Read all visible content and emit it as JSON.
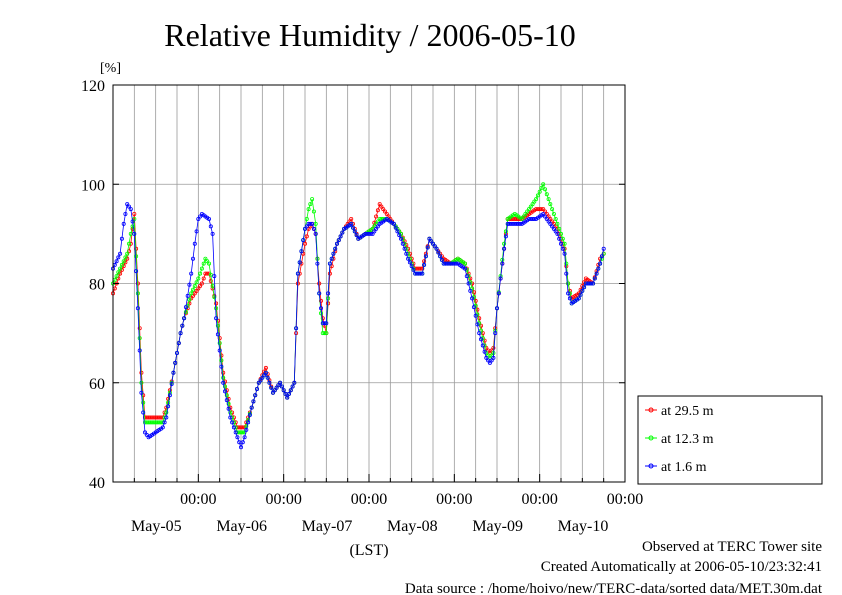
{
  "chart_data": {
    "type": "line",
    "title": "Relative Humidity / 2006-05-10",
    "ylabel": "[%]",
    "xlabel": "(LST)",
    "ylim": [
      40,
      120
    ],
    "yticks": [
      40,
      60,
      80,
      100,
      120
    ],
    "x_range_hours": [
      0,
      144
    ],
    "x_tick_labels": [
      {
        "time": "00:00",
        "date": "May-05"
      },
      {
        "time": "00:00",
        "date": "May-06"
      },
      {
        "time": "00:00",
        "date": "May-07"
      },
      {
        "time": "00:00",
        "date": "May-08"
      },
      {
        "time": "00:00",
        "date": "May-09"
      },
      {
        "time": "00:00",
        "date": "May-10"
      }
    ],
    "grid": true,
    "legend_position": "right",
    "series": [
      {
        "name": "at 29.5 m",
        "color": "#ff0000",
        "points": [
          [
            0,
            78
          ],
          [
            2,
            82
          ],
          [
            4,
            85
          ],
          [
            5,
            88
          ],
          [
            6,
            94
          ],
          [
            7,
            80
          ],
          [
            8,
            62
          ],
          [
            9,
            53
          ],
          [
            10,
            53
          ],
          [
            12,
            53
          ],
          [
            14,
            53
          ],
          [
            15,
            55
          ],
          [
            17,
            62
          ],
          [
            19,
            70
          ],
          [
            20,
            73
          ],
          [
            22,
            77
          ],
          [
            24,
            79
          ],
          [
            25,
            80
          ],
          [
            26,
            82
          ],
          [
            27,
            82
          ],
          [
            29,
            76
          ],
          [
            31,
            62
          ],
          [
            33,
            55
          ],
          [
            35,
            51
          ],
          [
            37,
            51
          ],
          [
            39,
            55
          ],
          [
            41,
            60
          ],
          [
            43,
            63
          ],
          [
            45,
            58
          ],
          [
            47,
            60
          ],
          [
            49,
            57
          ],
          [
            51,
            60
          ],
          [
            52,
            80
          ],
          [
            54,
            88
          ],
          [
            55,
            91
          ],
          [
            56,
            92
          ],
          [
            57,
            90
          ],
          [
            58,
            80
          ],
          [
            59,
            73
          ],
          [
            60,
            70
          ],
          [
            61,
            82
          ],
          [
            63,
            88
          ],
          [
            65,
            91
          ],
          [
            67,
            93
          ],
          [
            69,
            89
          ],
          [
            71,
            90
          ],
          [
            73,
            91
          ],
          [
            75,
            96
          ],
          [
            77,
            94
          ],
          [
            79,
            92
          ],
          [
            81,
            90
          ],
          [
            83,
            87
          ],
          [
            85,
            83
          ],
          [
            87,
            83
          ],
          [
            89,
            89
          ],
          [
            91,
            87
          ],
          [
            93,
            85
          ],
          [
            95,
            84
          ],
          [
            97,
            85
          ],
          [
            99,
            84
          ],
          [
            101,
            80
          ],
          [
            103,
            73
          ],
          [
            105,
            67
          ],
          [
            106,
            66
          ],
          [
            107,
            67
          ],
          [
            108,
            75
          ],
          [
            110,
            87
          ],
          [
            111,
            93
          ],
          [
            113,
            93
          ],
          [
            115,
            93
          ],
          [
            117,
            94
          ],
          [
            119,
            95
          ],
          [
            121,
            95
          ],
          [
            123,
            93
          ],
          [
            125,
            91
          ],
          [
            127,
            87
          ],
          [
            128,
            80
          ],
          [
            129,
            77
          ],
          [
            131,
            78
          ],
          [
            133,
            81
          ],
          [
            135,
            80
          ],
          [
            137,
            85
          ],
          [
            138,
            86
          ]
        ]
      },
      {
        "name": "at 12.3 m",
        "color": "#00ff00",
        "points": [
          [
            0,
            80
          ],
          [
            2,
            83
          ],
          [
            4,
            86
          ],
          [
            5,
            90
          ],
          [
            6,
            93
          ],
          [
            7,
            78
          ],
          [
            8,
            60
          ],
          [
            9,
            52
          ],
          [
            10,
            52
          ],
          [
            12,
            52
          ],
          [
            14,
            52
          ],
          [
            15,
            54
          ],
          [
            17,
            62
          ],
          [
            19,
            70
          ],
          [
            20,
            73
          ],
          [
            22,
            78
          ],
          [
            24,
            81
          ],
          [
            25,
            83
          ],
          [
            26,
            85
          ],
          [
            27,
            84
          ],
          [
            29,
            75
          ],
          [
            31,
            61
          ],
          [
            33,
            54
          ],
          [
            35,
            50
          ],
          [
            37,
            50
          ],
          [
            39,
            55
          ],
          [
            41,
            60
          ],
          [
            43,
            62
          ],
          [
            45,
            58
          ],
          [
            47,
            60
          ],
          [
            49,
            57
          ],
          [
            51,
            60
          ],
          [
            52,
            82
          ],
          [
            54,
            91
          ],
          [
            55,
            95
          ],
          [
            56,
            97
          ],
          [
            57,
            92
          ],
          [
            58,
            78
          ],
          [
            59,
            70
          ],
          [
            60,
            70
          ],
          [
            61,
            84
          ],
          [
            63,
            88
          ],
          [
            65,
            91
          ],
          [
            67,
            92
          ],
          [
            69,
            89
          ],
          [
            71,
            90
          ],
          [
            73,
            91
          ],
          [
            75,
            93
          ],
          [
            77,
            93
          ],
          [
            79,
            92
          ],
          [
            81,
            90
          ],
          [
            83,
            86
          ],
          [
            85,
            82
          ],
          [
            87,
            82
          ],
          [
            89,
            89
          ],
          [
            91,
            87
          ],
          [
            93,
            84
          ],
          [
            95,
            84
          ],
          [
            97,
            85
          ],
          [
            99,
            84
          ],
          [
            101,
            79
          ],
          [
            103,
            72
          ],
          [
            105,
            66
          ],
          [
            106,
            65
          ],
          [
            107,
            66
          ],
          [
            108,
            75
          ],
          [
            110,
            88
          ],
          [
            111,
            93
          ],
          [
            113,
            94
          ],
          [
            115,
            93
          ],
          [
            117,
            95
          ],
          [
            119,
            97
          ],
          [
            121,
            100
          ],
          [
            123,
            96
          ],
          [
            125,
            92
          ],
          [
            127,
            88
          ],
          [
            128,
            80
          ],
          [
            129,
            76
          ],
          [
            131,
            77
          ],
          [
            133,
            80
          ],
          [
            135,
            80
          ],
          [
            137,
            84
          ],
          [
            138,
            86
          ]
        ]
      },
      {
        "name": "at 1.6 m",
        "color": "#0000ff",
        "points": [
          [
            0,
            83
          ],
          [
            2,
            86
          ],
          [
            3,
            92
          ],
          [
            4,
            96
          ],
          [
            5,
            95
          ],
          [
            6,
            90
          ],
          [
            7,
            75
          ],
          [
            8,
            58
          ],
          [
            9,
            50
          ],
          [
            10,
            49
          ],
          [
            12,
            50
          ],
          [
            14,
            51
          ],
          [
            15,
            53
          ],
          [
            17,
            62
          ],
          [
            19,
            70
          ],
          [
            20,
            73
          ],
          [
            22,
            82
          ],
          [
            23,
            88
          ],
          [
            24,
            93
          ],
          [
            25,
            94
          ],
          [
            27,
            93
          ],
          [
            28,
            90
          ],
          [
            29,
            73
          ],
          [
            31,
            60
          ],
          [
            33,
            53
          ],
          [
            35,
            49
          ],
          [
            36,
            47
          ],
          [
            37,
            49
          ],
          [
            39,
            55
          ],
          [
            41,
            60
          ],
          [
            43,
            62
          ],
          [
            45,
            58
          ],
          [
            47,
            60
          ],
          [
            49,
            57
          ],
          [
            51,
            60
          ],
          [
            52,
            82
          ],
          [
            54,
            91
          ],
          [
            55,
            92
          ],
          [
            56,
            92
          ],
          [
            57,
            90
          ],
          [
            58,
            78
          ],
          [
            59,
            72
          ],
          [
            60,
            72
          ],
          [
            61,
            84
          ],
          [
            63,
            88
          ],
          [
            65,
            91
          ],
          [
            67,
            92
          ],
          [
            69,
            89
          ],
          [
            71,
            90
          ],
          [
            73,
            90
          ],
          [
            75,
            92
          ],
          [
            77,
            93
          ],
          [
            79,
            92
          ],
          [
            81,
            89
          ],
          [
            83,
            85
          ],
          [
            85,
            82
          ],
          [
            87,
            82
          ],
          [
            89,
            89
          ],
          [
            91,
            87
          ],
          [
            93,
            84
          ],
          [
            95,
            84
          ],
          [
            97,
            84
          ],
          [
            99,
            83
          ],
          [
            101,
            77
          ],
          [
            103,
            70
          ],
          [
            105,
            65
          ],
          [
            106,
            64
          ],
          [
            107,
            65
          ],
          [
            108,
            75
          ],
          [
            110,
            87
          ],
          [
            111,
            92
          ],
          [
            113,
            92
          ],
          [
            115,
            92
          ],
          [
            117,
            93
          ],
          [
            119,
            93
          ],
          [
            121,
            94
          ],
          [
            123,
            92
          ],
          [
            125,
            90
          ],
          [
            127,
            86
          ],
          [
            128,
            78
          ],
          [
            129,
            76
          ],
          [
            131,
            77
          ],
          [
            133,
            80
          ],
          [
            135,
            80
          ],
          [
            137,
            84
          ],
          [
            138,
            87
          ]
        ]
      }
    ]
  },
  "footer": {
    "line1": "Observed at TERC Tower site",
    "line2": "Created Automatically at 2006-05-10/23:32:41",
    "line3": "Data source : /home/hoivo/new/TERC-data/sorted  data/MET.30m.dat"
  }
}
